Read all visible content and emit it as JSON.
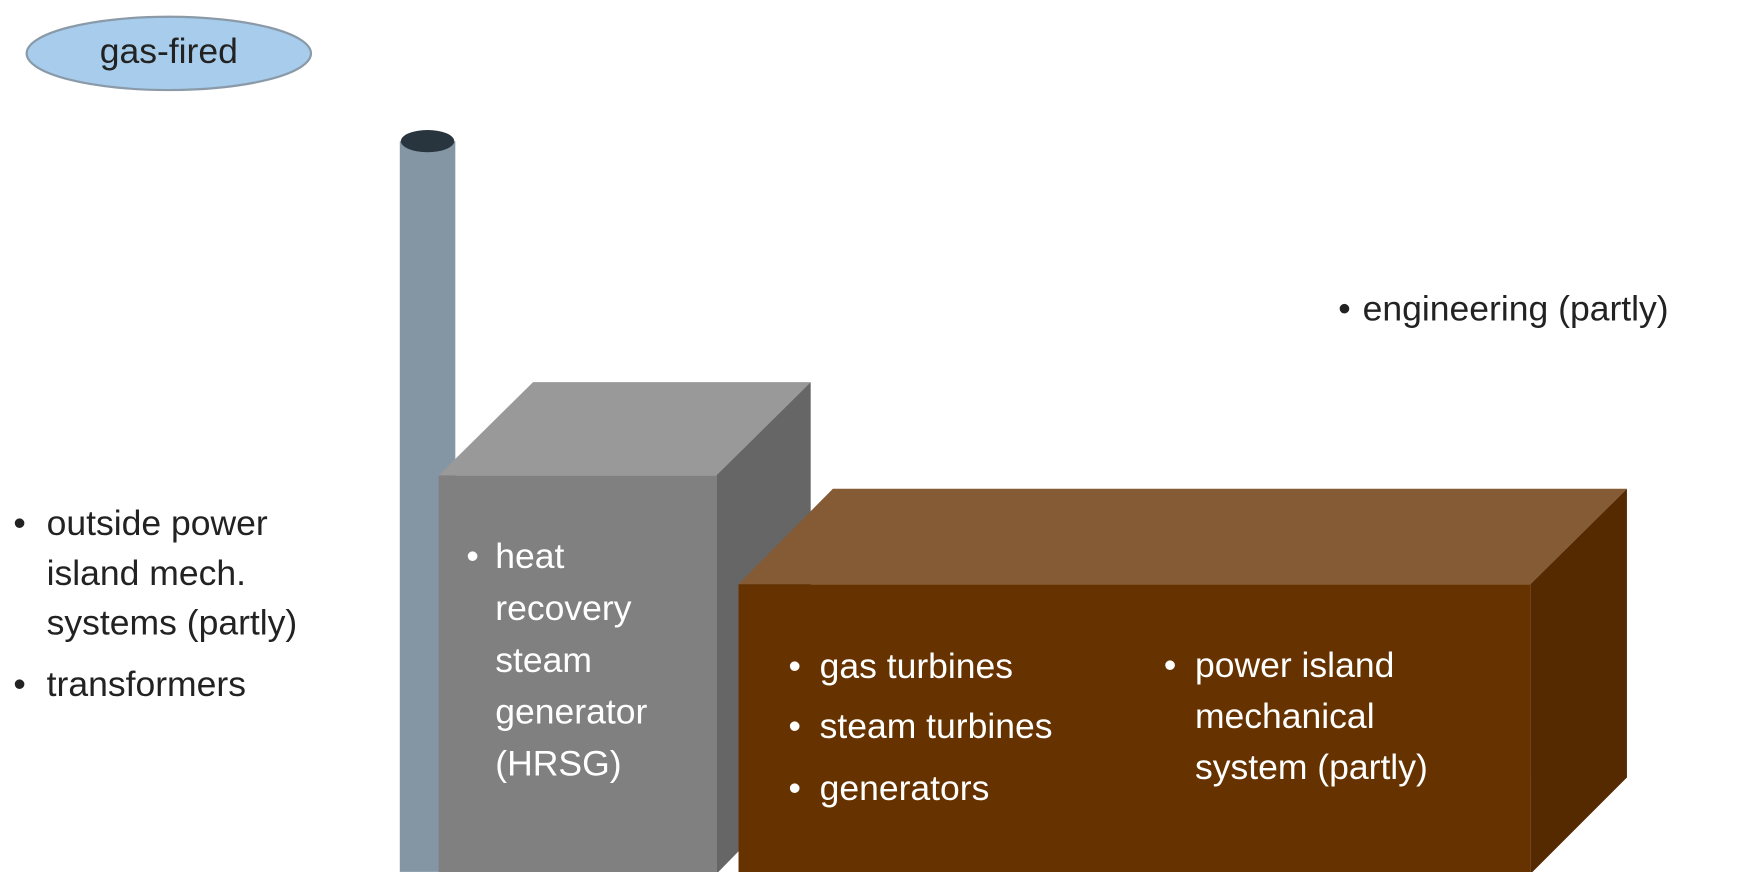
{
  "badge": "gas-fired",
  "engineering": {
    "items": [
      [
        "engineering (partly)"
      ]
    ]
  },
  "outside": {
    "items": [
      [
        "outside power",
        "island mech.",
        "systems (partly)"
      ],
      [
        "transformers"
      ]
    ]
  },
  "hrsg": {
    "items": [
      [
        "heat",
        "recovery",
        "steam",
        "generator",
        "(HRSG)"
      ]
    ]
  },
  "power_island": {
    "items": [
      [
        "gas turbines"
      ],
      [
        "steam turbines"
      ],
      [
        "generators"
      ]
    ]
  },
  "power_island_mech": {
    "items": [
      [
        "power island",
        "mechanical",
        "system (partly)"
      ]
    ]
  }
}
